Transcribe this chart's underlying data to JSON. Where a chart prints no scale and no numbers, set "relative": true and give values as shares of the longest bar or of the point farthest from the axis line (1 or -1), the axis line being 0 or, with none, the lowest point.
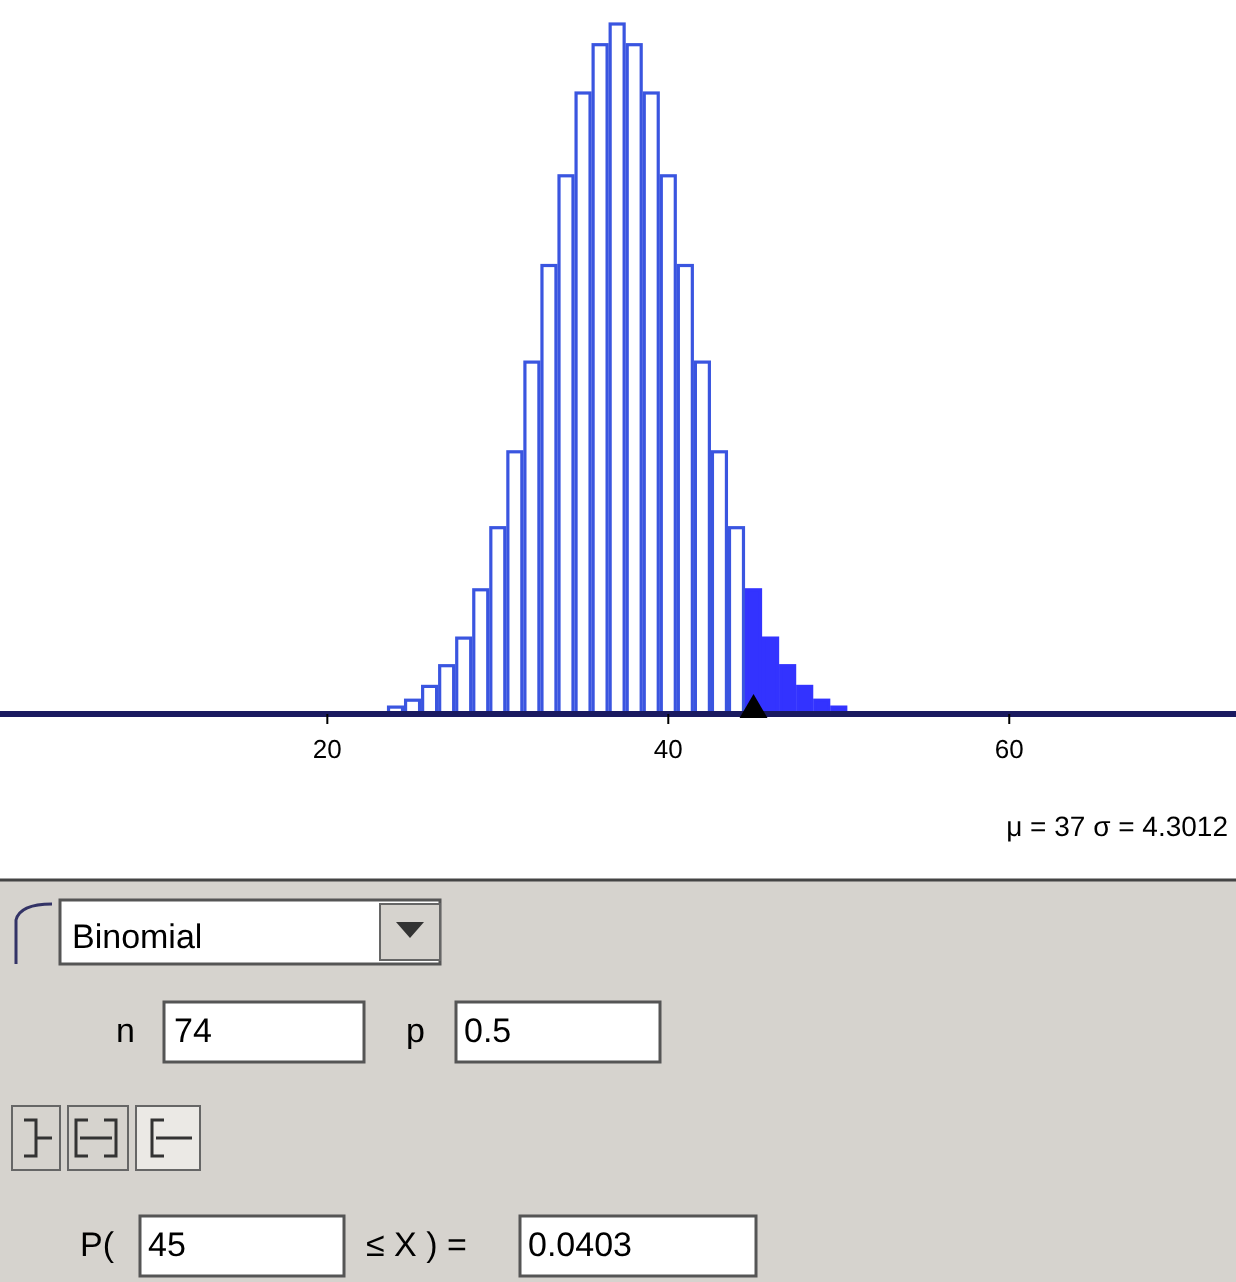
{
  "chart_data": {
    "type": "bar",
    "relative": true,
    "xlim": [
      0.8,
      73.3
    ],
    "xticks": [
      20,
      40,
      60
    ],
    "series": [
      {
        "color": "#3a55e0",
        "x": [
          24,
          25,
          26,
          27,
          28,
          29,
          30,
          31,
          32,
          33,
          34,
          35,
          36,
          37,
          38,
          39,
          40,
          41,
          42,
          43,
          44
        ],
        "values": [
          0.01,
          0.02,
          0.04,
          0.07,
          0.11,
          0.18,
          0.27,
          0.38,
          0.51,
          0.65,
          0.78,
          0.9,
          0.97,
          1,
          0.97,
          0.9,
          0.78,
          0.65,
          0.51,
          0.38,
          0.27
        ]
      },
      {
        "color": "#3333ff",
        "x": [
          45,
          46,
          47,
          48,
          49,
          50
        ],
        "values": [
          0.18,
          0.11,
          0.07,
          0.04,
          0.02,
          0.01
        ]
      }
    ],
    "annotations": [
      "μ = 37   σ = 4.3012",
      "Binomial",
      "n",
      "74",
      "p",
      "0.5",
      "P(",
      "45",
      "≤ X ) =",
      "0.0403"
    ]
  }
}
